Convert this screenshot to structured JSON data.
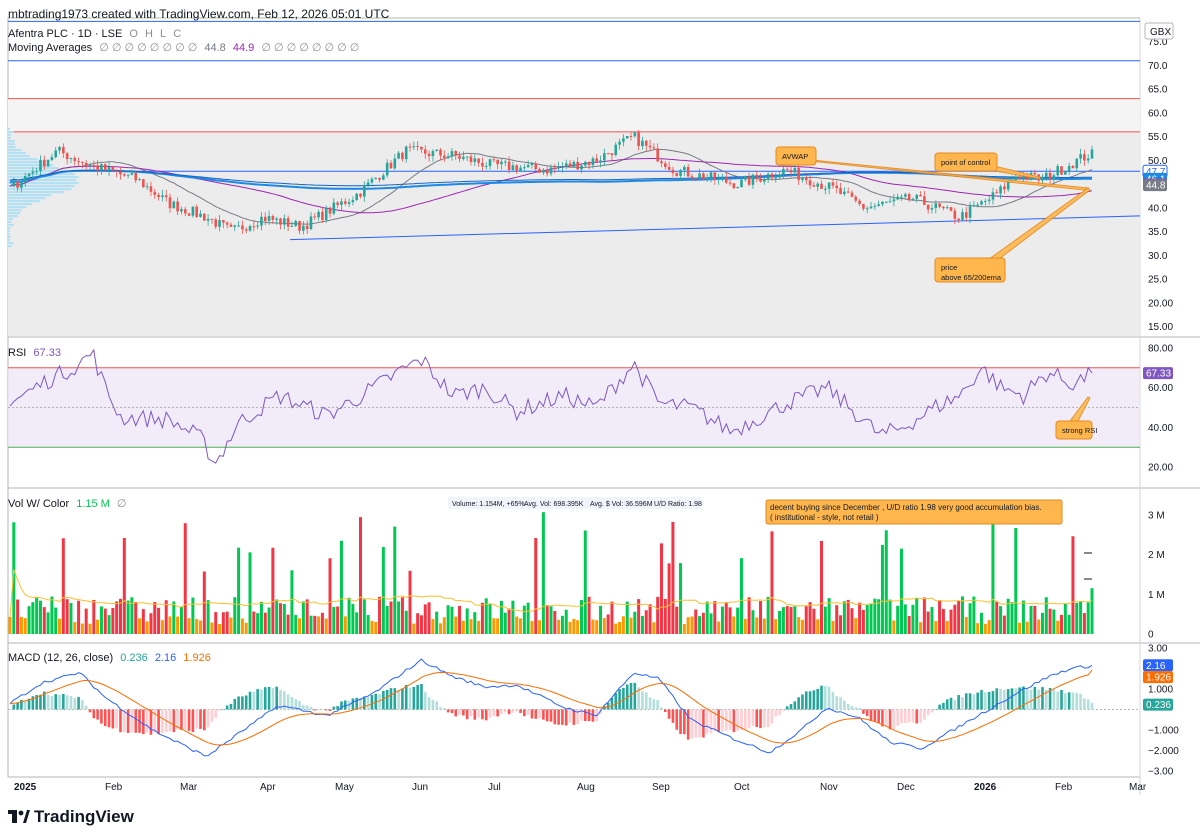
{
  "header": {
    "credit": "mbtrading1973 created with TradingView.com, Feb 12, 2026 05:01 UTC",
    "brand": "TradingView"
  },
  "price_pane": {
    "symbol": "Afentra PLC · 1D · LSE",
    "ohlc_letters": [
      "O",
      "H",
      "L",
      "C"
    ],
    "ma_label": "Moving Averages",
    "ma_values": [
      "44.8",
      "44.9"
    ],
    "currency": "GBX",
    "axis_ticks": [
      "75.0",
      "70.0",
      "65.0",
      "60.0",
      "55.0",
      "50.0",
      "45.0",
      "40.0",
      "35.0",
      "30.0",
      "25.0",
      "20.00",
      "15.00"
    ],
    "tags": [
      {
        "text": "47.7",
        "value": 47.7,
        "color": "#ffffff",
        "bg": "#2962ff",
        "fg": "#2962ff",
        "style": "outline"
      },
      {
        "text": "46.1",
        "value": 46.1,
        "bg": "#1e88e5",
        "fg": "#ffffff"
      },
      {
        "text": "44.9",
        "value": 44.9,
        "bg": "#9c27b0",
        "fg": "#ffffff"
      },
      {
        "text": "44.8",
        "value": 44.8,
        "bg": "#787b86",
        "fg": "#ffffff"
      }
    ],
    "annotations": [
      {
        "text": "AVWAP"
      },
      {
        "text": "point of control"
      },
      {
        "text": "price above 65/200ema"
      }
    ]
  },
  "rsi_pane": {
    "label": "RSI",
    "value": "67.33",
    "axis_ticks": [
      "80.00",
      "60.00",
      "40.00",
      "20.00"
    ],
    "upper": 70,
    "lower": 30,
    "annotation": "strong RSI"
  },
  "vol_pane": {
    "label": "Vol W/ Color",
    "value": "1.15 M",
    "stats": [
      "Volume: 1.154M, +65%",
      "Avg. Vol: 698.395K",
      "Avg. $ Vol: 36.596M",
      "U/D Ratio: 1.98"
    ],
    "axis_ticks": [
      "3 M",
      "2 M",
      "1 M",
      "0"
    ],
    "annotation_line1": "decent buying since December , U/D ratio 1.98 very good accumulation bias.",
    "annotation_line2": "( institutional - style, not retail )"
  },
  "macd_pane": {
    "label": "MACD (12, 26, close)",
    "values": [
      "0.236",
      "2.16",
      "1.926"
    ],
    "axis_ticks": [
      "3.00",
      "1.000",
      "−1.000",
      "−2.000",
      "−3.00"
    ],
    "tags": [
      {
        "text": "2.16",
        "value": 2.16,
        "bg": "#2962ff",
        "fg": "#ffffff"
      },
      {
        "text": "1.926",
        "value": 1.926,
        "bg": "#ff6d00",
        "fg": "#ffffff"
      },
      {
        "text": "0.236",
        "value": 0.236,
        "bg": "#26a69a",
        "fg": "#ffffff"
      }
    ]
  },
  "time_axis": [
    "2025",
    "Feb",
    "Mar",
    "Apr",
    "May",
    "Jun",
    "Jul",
    "Aug",
    "Sep",
    "Oct",
    "Nov",
    "Dec",
    "2026",
    "Feb",
    "Mar"
  ],
  "colors": {
    "up": "#26a69a",
    "down": "#ef5350",
    "vol_up": "#00c853",
    "vol_down": "#f23645",
    "vol_orange": "#ff9800",
    "blue": "#2962ff",
    "purple": "#9c27b0",
    "gray": "#787b86",
    "rsi": "#7e57c2",
    "note_bg": "#ffb74d",
    "note_border": "#e68a1f"
  },
  "chart_data": [
    {
      "type": "line",
      "name": "price",
      "x": [
        "2025-01",
        "2025-02",
        "2025-03",
        "2025-04",
        "2025-05",
        "2025-06",
        "2025-07",
        "2025-08",
        "2025-09",
        "2025-10",
        "2025-11",
        "2025-12",
        "2026-01",
        "2026-02"
      ],
      "values": [
        50,
        47,
        41,
        35,
        38,
        50,
        49,
        48,
        54,
        46,
        47,
        40,
        44,
        51
      ],
      "ylim": [
        13,
        80
      ],
      "hlines": [
        47.7
      ],
      "last": 51.4
    },
    {
      "type": "line",
      "name": "RSI",
      "x": [
        "2025-01",
        "2025-02",
        "2025-03",
        "2025-04",
        "2025-05",
        "2025-06",
        "2025-07",
        "2025-08",
        "2025-09",
        "2025-10",
        "2025-11",
        "2025-12",
        "2026-01",
        "2026-02"
      ],
      "values": [
        62,
        45,
        20,
        32,
        50,
        72,
        58,
        48,
        66,
        36,
        56,
        33,
        58,
        67.33
      ],
      "ylim": [
        10,
        85
      ]
    },
    {
      "type": "bar",
      "name": "Volume",
      "values_unit": "M",
      "last": 1.154,
      "ylim": [
        0,
        3.4
      ]
    },
    {
      "type": "line",
      "name": "MACD",
      "series": [
        {
          "name": "MACD",
          "last": 2.16
        },
        {
          "name": "Signal",
          "last": 1.926
        },
        {
          "name": "Histogram",
          "last": 0.236
        }
      ],
      "ylim": [
        -3.3,
        3.2
      ]
    }
  ]
}
